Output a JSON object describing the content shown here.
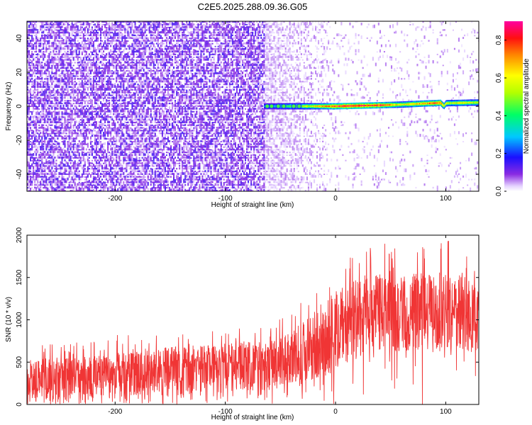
{
  "figure_title": "C2E5.2025.288.09.36.G05",
  "chart_data": [
    {
      "type": "heatmap",
      "name": "spectrogram",
      "xlabel": "Height of straight line (km)",
      "ylabel": "Frequency (Hz)",
      "xlim": [
        -280,
        130
      ],
      "ylim": [
        -50,
        50
      ],
      "xticks": [
        -200,
        -100,
        0,
        100
      ],
      "xtick_labels": [
        "-200",
        "-100",
        "0",
        "100"
      ],
      "yticks": [
        -40,
        -20,
        0,
        20,
        40
      ],
      "ytick_labels": [
        "-40",
        "-20",
        "0",
        "20",
        "40"
      ],
      "colorbar": {
        "label": "Normalized spectral amplitude",
        "range": [
          0.0,
          0.9
        ],
        "ticks": [
          0.0,
          0.2,
          0.4,
          0.6,
          0.8
        ],
        "tick_labels": [
          "0.0",
          "0.2",
          "0.4",
          "0.6",
          "0.8"
        ],
        "colormap": "rainbow"
      },
      "noise_floor": {
        "strong_region_x": [
          -280,
          -65
        ],
        "fade_region_x": [
          -65,
          0
        ],
        "sparse_region_x": [
          0,
          130
        ],
        "typical_amplitude": 0.05
      },
      "signal_trace": {
        "x": [
          -65,
          -55,
          -45,
          -35,
          -20,
          0,
          20,
          40,
          60,
          80,
          95,
          98,
          100,
          115,
          130
        ],
        "frequency": [
          0,
          0,
          0,
          0,
          0,
          0,
          0.3,
          0.6,
          1.0,
          1.6,
          2.0,
          0.0,
          1.8,
          2.0,
          2.2
        ],
        "amplitude": [
          0.3,
          0.35,
          0.45,
          0.5,
          0.6,
          0.8,
          0.85,
          0.8,
          0.6,
          0.7,
          0.8,
          0.6,
          0.55,
          0.6,
          0.55
        ]
      }
    },
    {
      "type": "line",
      "name": "snr",
      "xlabel": "Height of straight line (km)",
      "ylabel": "SNR (10 * v/v)",
      "xlim": [
        -280,
        130
      ],
      "ylim": [
        0,
        2000
      ],
      "xticks": [
        -200,
        -100,
        0,
        100
      ],
      "xtick_labels": [
        "-200",
        "-100",
        "0",
        "100"
      ],
      "yticks": [
        0,
        500,
        1000,
        1500,
        2000
      ],
      "ytick_labels": [
        "0",
        "500",
        "1000",
        "1500",
        "2000"
      ],
      "color": "#f03535",
      "envelope": {
        "x": [
          -280,
          -240,
          -200,
          -150,
          -100,
          -60,
          -40,
          -20,
          0,
          20,
          40,
          60,
          80,
          100,
          130
        ],
        "lower": [
          30,
          60,
          90,
          110,
          140,
          170,
          200,
          280,
          400,
          540,
          620,
          620,
          620,
          620,
          620
        ],
        "mean": [
          250,
          280,
          320,
          360,
          400,
          430,
          480,
          600,
          800,
          950,
          1030,
          1050,
          1060,
          1060,
          1060
        ],
        "upper": [
          520,
          560,
          620,
          680,
          720,
          760,
          850,
          1100,
          1350,
          1450,
          1550,
          1550,
          1550,
          1550,
          1550
        ],
        "spike_max": [
          700,
          750,
          820,
          850,
          900,
          950,
          1100,
          1400,
          1700,
          1800,
          1950,
          2000,
          1900,
          1950,
          1950
        ]
      }
    }
  ]
}
